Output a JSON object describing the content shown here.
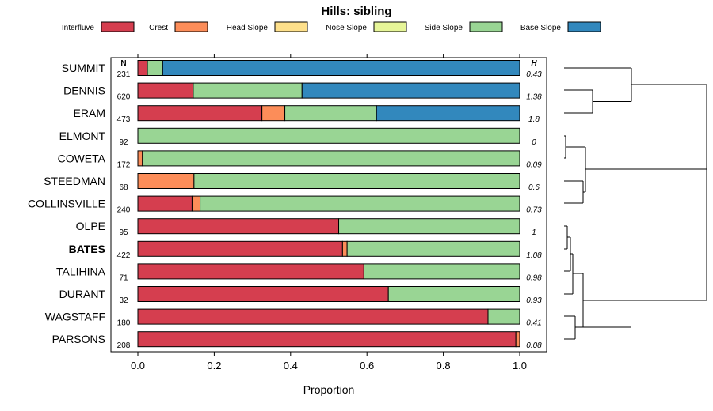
{
  "chart_data": {
    "type": "bar",
    "orientation": "horizontal",
    "stacked": true,
    "title": "Hills: sibling",
    "xlabel": "Proportion",
    "ylabel": "",
    "xlim": [
      0,
      1
    ],
    "x_ticks": [
      "0.0",
      "0.2",
      "0.4",
      "0.6",
      "0.8",
      "1.0"
    ],
    "x_tick_values": [
      0,
      0.2,
      0.4,
      0.6,
      0.8,
      1.0
    ],
    "legend_position": "top",
    "n_header": "N",
    "h_header": "H",
    "highlighted_category": "BATES",
    "series": [
      {
        "name": "Interfluve",
        "color": "#D53E4F"
      },
      {
        "name": "Crest",
        "color": "#FC8D59"
      },
      {
        "name": "Head Slope",
        "color": "#FEE08B"
      },
      {
        "name": "Nose Slope",
        "color": "#E6F598"
      },
      {
        "name": "Side Slope",
        "color": "#99D594"
      },
      {
        "name": "Base Slope",
        "color": "#3288BD"
      }
    ],
    "rows": [
      {
        "name": "SUMMIT",
        "n": "231",
        "h": "0.43",
        "values": [
          0.025,
          0,
          0,
          0,
          0.04,
          0.935
        ]
      },
      {
        "name": "DENNIS",
        "n": "620",
        "h": "1.38",
        "values": [
          0.145,
          0,
          0,
          0,
          0.285,
          0.57
        ]
      },
      {
        "name": "ERAM",
        "n": "473",
        "h": "1.8",
        "values": [
          0.325,
          0.06,
          0,
          0,
          0.24,
          0.375
        ]
      },
      {
        "name": "ELMONT",
        "n": "92",
        "h": "0",
        "values": [
          0,
          0,
          0,
          0,
          1.0,
          0
        ]
      },
      {
        "name": "COWETA",
        "n": "172",
        "h": "0.09",
        "values": [
          0,
          0.012,
          0,
          0,
          0.988,
          0
        ]
      },
      {
        "name": "STEEDMAN",
        "n": "68",
        "h": "0.6",
        "values": [
          0,
          0.147,
          0,
          0,
          0.853,
          0
        ]
      },
      {
        "name": "COLLINSVILLE",
        "n": "240",
        "h": "0.73",
        "values": [
          0.142,
          0.021,
          0,
          0,
          0.837,
          0
        ]
      },
      {
        "name": "OLPE",
        "n": "95",
        "h": "1",
        "values": [
          0.526,
          0,
          0,
          0,
          0.474,
          0
        ]
      },
      {
        "name": "BATES",
        "n": "422",
        "h": "1.08",
        "values": [
          0.536,
          0.012,
          0,
          0,
          0.452,
          0
        ]
      },
      {
        "name": "TALIHINA",
        "n": "71",
        "h": "0.98",
        "values": [
          0.592,
          0,
          0,
          0,
          0.408,
          0
        ]
      },
      {
        "name": "DURANT",
        "n": "32",
        "h": "0.93",
        "values": [
          0.656,
          0,
          0,
          0,
          0.344,
          0
        ]
      },
      {
        "name": "WAGSTAFF",
        "n": "180",
        "h": "0.41",
        "values": [
          0.917,
          0,
          0,
          0,
          0.083,
          0
        ]
      },
      {
        "name": "PARSONS",
        "n": "208",
        "h": "0.08",
        "values": [
          0.99,
          0.01,
          0,
          0,
          0,
          0
        ]
      }
    ],
    "dendrogram": "hierarchical clustering of the 13 series"
  }
}
